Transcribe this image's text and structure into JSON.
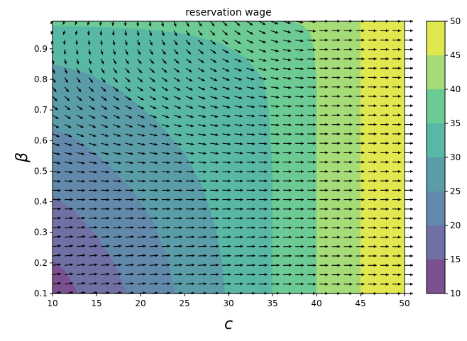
{
  "chart_data": {
    "type": "contour",
    "title": "reservation wage",
    "xlabel": "c",
    "ylabel": "β",
    "xlim": [
      10,
      50
    ],
    "ylim": [
      0.1,
      0.99
    ],
    "xticks": [
      "10",
      "15",
      "20",
      "25",
      "30",
      "35",
      "40",
      "45",
      "50"
    ],
    "yticks": [
      "0.1",
      "0.2",
      "0.3",
      "0.4",
      "0.5",
      "0.6",
      "0.7",
      "0.8",
      "0.9"
    ],
    "levels": [
      10,
      15,
      20,
      25,
      30,
      35,
      40,
      45,
      50
    ],
    "colorbar_ticks": [
      "10",
      "15",
      "20",
      "25",
      "30",
      "35",
      "40",
      "45",
      "50"
    ],
    "band_colors": [
      "#7a5090",
      "#7070a5",
      "#6289ab",
      "#5a9da8",
      "#58b8a5",
      "#6ccb95",
      "#a6dc78",
      "#e1e74e"
    ],
    "contour_boundaries": [
      {
        "level": 15,
        "points": [
          [
            10,
            0.21
          ],
          [
            11.5,
            0.17
          ],
          [
            12.9,
            0.1
          ]
        ]
      },
      {
        "level": 20,
        "points": [
          [
            10,
            0.42
          ],
          [
            12.5,
            0.37
          ],
          [
            15,
            0.29
          ],
          [
            17,
            0.2
          ],
          [
            18.5,
            0.1
          ]
        ]
      },
      {
        "level": 25,
        "points": [
          [
            10,
            0.64
          ],
          [
            13,
            0.6
          ],
          [
            16,
            0.53
          ],
          [
            19,
            0.44
          ],
          [
            21.5,
            0.33
          ],
          [
            23,
            0.22
          ],
          [
            24,
            0.1
          ]
        ]
      },
      {
        "level": 30,
        "points": [
          [
            10,
            0.85
          ],
          [
            14,
            0.82
          ],
          [
            18,
            0.76
          ],
          [
            22,
            0.66
          ],
          [
            25,
            0.56
          ],
          [
            27,
            0.45
          ],
          [
            28.5,
            0.32
          ],
          [
            29.3,
            0.2
          ],
          [
            29.6,
            0.1
          ]
        ]
      },
      {
        "level": 35,
        "points": [
          [
            10,
            0.975
          ],
          [
            15,
            0.972
          ],
          [
            20,
            0.965
          ],
          [
            25,
            0.95
          ],
          [
            29,
            0.92
          ],
          [
            32,
            0.87
          ],
          [
            34,
            0.8
          ],
          [
            34.6,
            0.7
          ],
          [
            35,
            0.5
          ],
          [
            35,
            0.1
          ]
        ]
      },
      {
        "level": 40,
        "points": [
          [
            37.3,
            0.99
          ],
          [
            38.5,
            0.975
          ],
          [
            39.3,
            0.95
          ],
          [
            39.7,
            0.9
          ],
          [
            40,
            0.8
          ],
          [
            40,
            0.1
          ]
        ]
      },
      {
        "level": 45,
        "points": [
          [
            45,
            0.99
          ],
          [
            45,
            0.1
          ]
        ]
      }
    ],
    "quiver": {
      "grid": [
        30,
        30
      ],
      "color": "#000000"
    },
    "colorbar": true,
    "grid": false
  }
}
